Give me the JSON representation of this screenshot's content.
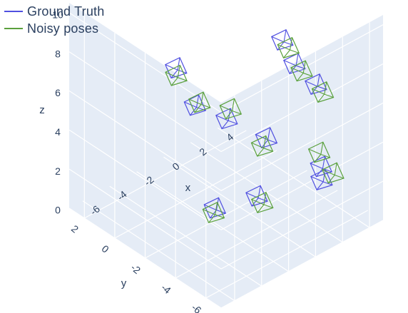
{
  "chart_data": {
    "type": "scatter3d",
    "legend": {
      "placement": "top-left",
      "entries": [
        {
          "label": "Ground Truth",
          "color": "#5050e0"
        },
        {
          "label": "Noisy poses",
          "color": "#5aa03c"
        }
      ]
    },
    "axes": {
      "x": {
        "label": "x",
        "ticks": [
          -6,
          -4,
          -2,
          0,
          2,
          4
        ],
        "range": [
          -7,
          5
        ]
      },
      "y": {
        "label": "y",
        "ticks": [
          -6,
          -4,
          -2,
          0,
          2
        ],
        "range": [
          -7,
          3
        ]
      },
      "z": {
        "label": "z",
        "ticks": [
          0,
          2,
          4,
          6,
          8,
          10
        ],
        "range": [
          0,
          10.5
        ]
      }
    },
    "background": {
      "pane": "#e5ecf6",
      "grid": "#ffffff"
    },
    "series": [
      {
        "name": "Ground Truth",
        "color": "#5050e0",
        "camera_positions": [
          [
            4.5,
            -3.4,
            0.4
          ],
          [
            3.0,
            -4.7,
            2.3
          ],
          [
            3.4,
            -4.0,
            6.0
          ],
          [
            2.6,
            -3.3,
            7.0
          ],
          [
            2.6,
            -2.5,
            7.8
          ],
          [
            -5.5,
            -2.7,
            9.5
          ],
          [
            -6.8,
            -5.1,
            9.3
          ],
          [
            -6.7,
            -7.1,
            9.6
          ],
          [
            -4.1,
            -7.4,
            7.8
          ],
          [
            -4.7,
            -7.3,
            5.0
          ],
          [
            -6.9,
            -6.5,
            4.8
          ]
        ]
      },
      {
        "name": "Noisy poses",
        "color": "#5aa03c",
        "camera_positions": [
          [
            4.9,
            -3.8,
            0.8
          ],
          [
            3.2,
            -4.4,
            2.8
          ],
          [
            3.8,
            -4.1,
            5.5
          ],
          [
            2.8,
            -3.6,
            6.7
          ],
          [
            2.6,
            -2.9,
            7.6
          ],
          [
            -5.6,
            -2.8,
            9.2
          ],
          [
            -6.8,
            -5.4,
            9.6
          ],
          [
            -6.3,
            -7.0,
            9.9
          ],
          [
            -4.3,
            -7.3,
            7.4
          ],
          [
            -4.4,
            -7.4,
            4.6
          ],
          [
            -7.0,
            -6.5,
            4.6
          ]
        ]
      }
    ]
  }
}
